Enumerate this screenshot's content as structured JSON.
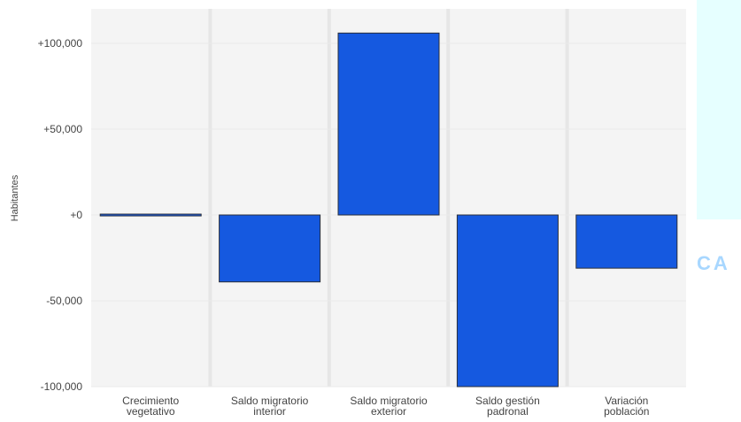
{
  "chart_data": {
    "type": "bar",
    "categories": [
      [
        "Crecimiento",
        "vegetativo"
      ],
      [
        "Saldo migratorio",
        "interior"
      ],
      [
        "Saldo migratorio",
        "exterior"
      ],
      [
        "Saldo gestión",
        "padronal"
      ],
      [
        "Variación",
        "población"
      ]
    ],
    "values": [
      500,
      -39000,
      106000,
      -101000,
      -31000
    ],
    "ylabel": "Habitantes",
    "ylim": [
      -100000,
      120000
    ],
    "yticks": [
      -100000,
      -50000,
      0,
      50000,
      100000
    ],
    "ytick_labels": [
      "-100,000",
      "-50,000",
      "+0",
      "+50,000",
      "+100,000"
    ],
    "grid": true,
    "bar_color": "#1559E0",
    "bar_edge_color": "#2a2f3a",
    "plot_bg": "#f4f4f4"
  },
  "watermark": {
    "text": "CA",
    "color": "#a8d7ff",
    "panel_color": "#e6ffff"
  }
}
